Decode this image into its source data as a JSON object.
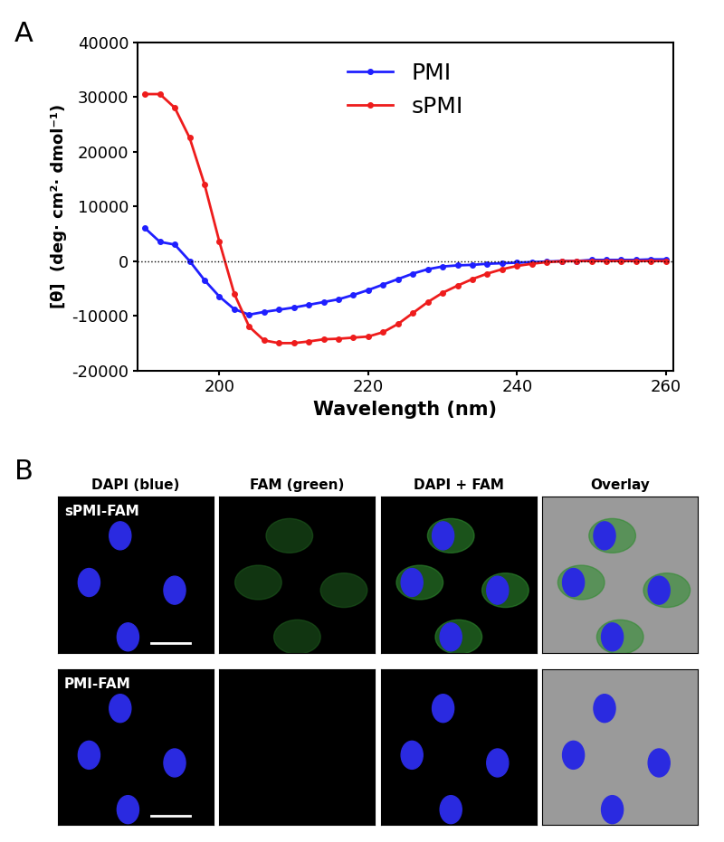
{
  "panel_labels": [
    "A",
    "B"
  ],
  "chart_data": {
    "type": "line",
    "x_label": "Wavelength (nm)",
    "y_label": "[θ]  (deg· cm²· dmol⁻¹)",
    "x": [
      190,
      192,
      194,
      196,
      198,
      200,
      202,
      204,
      206,
      208,
      210,
      212,
      214,
      216,
      218,
      220,
      222,
      224,
      226,
      228,
      230,
      232,
      234,
      236,
      238,
      240,
      242,
      244,
      246,
      248,
      250,
      252,
      254,
      256,
      258,
      260
    ],
    "series": [
      {
        "name": "PMI",
        "color": "#1f1fff",
        "marker": "o",
        "line_style": "solid",
        "values": [
          6000,
          3500,
          3000,
          0,
          -3500,
          -6500,
          -8800,
          -9800,
          -9300,
          -8900,
          -8500,
          -8000,
          -7500,
          -7000,
          -6200,
          -5300,
          -4300,
          -3300,
          -2300,
          -1500,
          -1000,
          -800,
          -700,
          -500,
          -400,
          -300,
          -200,
          -100,
          0,
          0,
          200,
          200,
          200,
          200,
          300,
          300
        ]
      },
      {
        "name": "sPMI",
        "color": "#ee1c1c",
        "marker": "o",
        "line_style": "solid",
        "values": [
          30500,
          30500,
          28000,
          22500,
          14000,
          3500,
          -6000,
          -12000,
          -14500,
          -15000,
          -15000,
          -14700,
          -14300,
          -14200,
          -14000,
          -13800,
          -13000,
          -11500,
          -9500,
          -7500,
          -5800,
          -4500,
          -3300,
          -2300,
          -1500,
          -900,
          -500,
          -200,
          -50,
          0,
          0,
          0,
          0,
          0,
          0,
          0
        ]
      }
    ],
    "zero_line": 0,
    "xlim": [
      189,
      261
    ],
    "xticks": [
      200,
      220,
      240,
      260
    ],
    "ylim": [
      -20000,
      40000
    ],
    "yticks": [
      -20000,
      -10000,
      0,
      10000,
      20000,
      30000,
      40000
    ],
    "legend": "upper center",
    "grid": false
  },
  "micrographs": {
    "columns": [
      "DAPI (blue)",
      "FAM (green)",
      "DAPI + FAM",
      "Overlay"
    ],
    "rows": [
      "sPMI-FAM",
      "PMI-FAM"
    ]
  }
}
